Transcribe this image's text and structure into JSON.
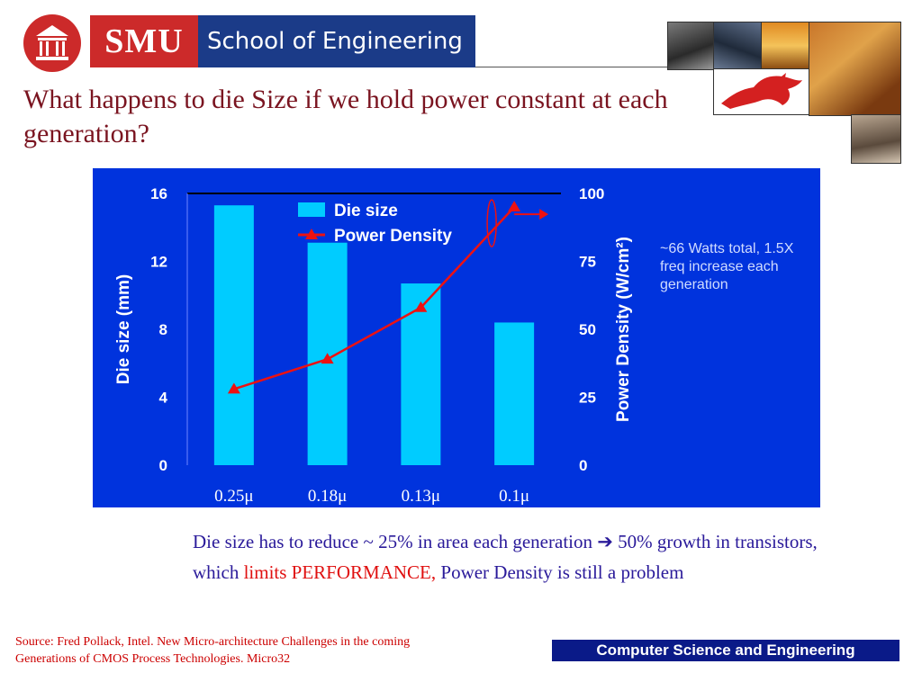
{
  "header": {
    "brand_short": "SMU",
    "brand_long": "School of Engineering"
  },
  "slide": {
    "title": "What happens to die Size if we hold power constant at each generation?",
    "note": "~66 Watts total, 1.5X freq increase each generation",
    "caption": {
      "part1": "Die size has to reduce ~ 25% in area each generation ",
      "arrow": "➔",
      "part2": " 50% growth in transistors, which ",
      "highlight": "limits PERFORMANCE,",
      "part3": " Power Density is still a problem"
    },
    "source": "Source: Fred Pollack, Intel. New Micro-architecture Challenges in the coming Generations of CMOS Process Technologies. Micro32",
    "footer": "Computer Science and Engineering"
  },
  "colors": {
    "chart_bg": "#0033dd",
    "bar": "#00ccff",
    "line": "#ee1111",
    "title": "#7a1420",
    "caption": "#2a1a9a",
    "accent_red": "#e01010",
    "smu_red": "#cc2a2a",
    "smu_blue": "#1b3b88"
  },
  "chart_data": {
    "type": "bar",
    "categories": [
      "0.25μ",
      "0.18μ",
      "0.13μ",
      "0.1μ"
    ],
    "series": [
      {
        "name": "Die size",
        "type": "bar",
        "axis": "left",
        "values": [
          15.3,
          13.1,
          10.7,
          8.4
        ]
      },
      {
        "name": "Power Density",
        "type": "line",
        "axis": "right",
        "values": [
          28,
          39,
          58,
          95
        ]
      }
    ],
    "ylabel": "Die size (mm)",
    "y2label": "Power Density (W/cm²)",
    "ylim": [
      0,
      16
    ],
    "y2lim": [
      0,
      100
    ],
    "yticks": [
      0,
      4,
      8,
      12,
      16
    ],
    "y2ticks": [
      0,
      25,
      50,
      75,
      100
    ],
    "legend": "top-center"
  }
}
